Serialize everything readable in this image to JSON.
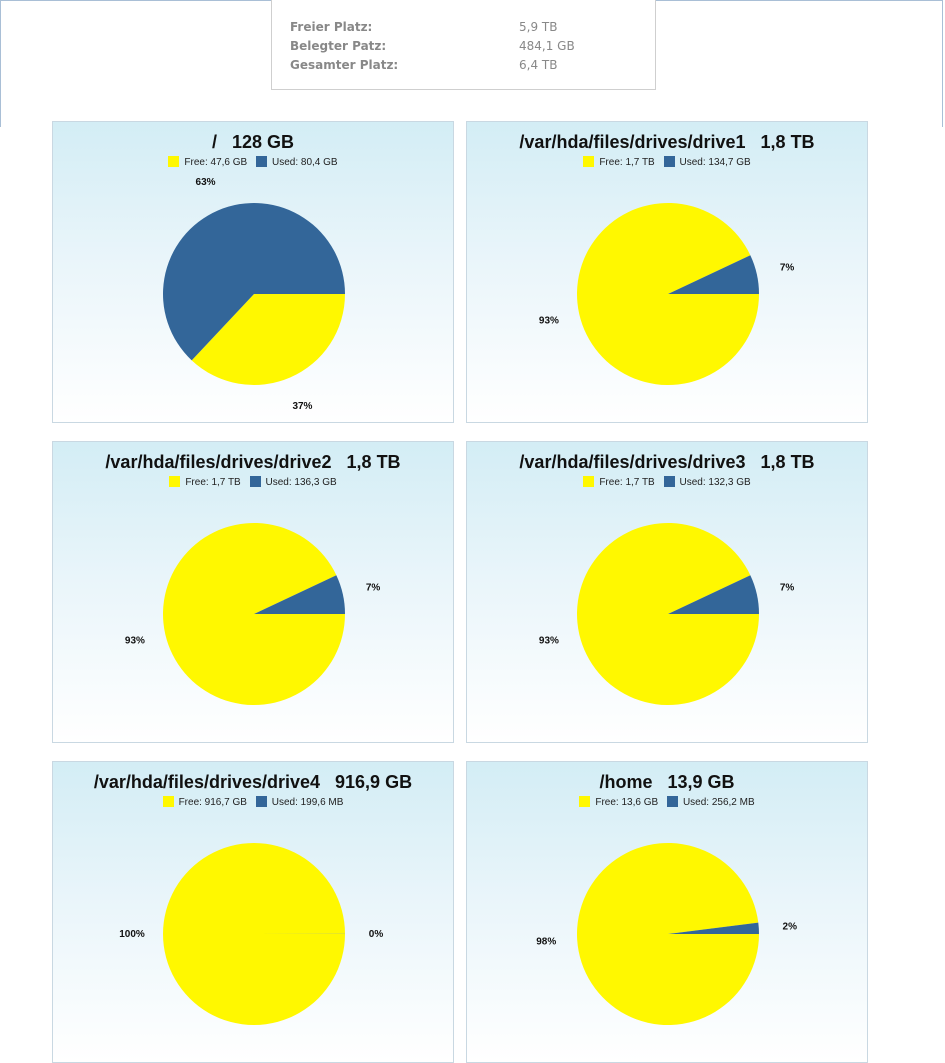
{
  "summary": {
    "free_label": "Freier Platz:",
    "free_value": "5,9 TB",
    "used_label": "Belegter Patz:",
    "used_value": "484,1 GB",
    "total_label": "Gesamter Platz:",
    "total_value": "6,4 TB"
  },
  "colors": {
    "free": "#fff800",
    "used": "#336699"
  },
  "chart_data": [
    {
      "type": "pie",
      "title": "/   128 GB",
      "mount": "/",
      "size": "128 GB",
      "legend": [
        "Free: 47,6 GB",
        "Used: 80,4 GB"
      ],
      "categories": [
        "Free",
        "Used"
      ],
      "values": [
        37,
        63
      ],
      "labels": [
        "37%",
        "63%"
      ]
    },
    {
      "type": "pie",
      "title": "/var/hda/files/drives/drive1   1,8 TB",
      "mount": "/var/hda/files/drives/drive1",
      "size": "1,8 TB",
      "legend": [
        "Free: 1,7 TB",
        "Used: 134,7 GB"
      ],
      "categories": [
        "Free",
        "Used"
      ],
      "values": [
        93,
        7
      ],
      "labels": [
        "93%",
        "7%"
      ]
    },
    {
      "type": "pie",
      "title": "/var/hda/files/drives/drive2   1,8 TB",
      "mount": "/var/hda/files/drives/drive2",
      "size": "1,8 TB",
      "legend": [
        "Free: 1,7 TB",
        "Used: 136,3 GB"
      ],
      "categories": [
        "Free",
        "Used"
      ],
      "values": [
        93,
        7
      ],
      "labels": [
        "93%",
        "7%"
      ]
    },
    {
      "type": "pie",
      "title": "/var/hda/files/drives/drive3   1,8 TB",
      "mount": "/var/hda/files/drives/drive3",
      "size": "1,8 TB",
      "legend": [
        "Free: 1,7 TB",
        "Used: 132,3 GB"
      ],
      "categories": [
        "Free",
        "Used"
      ],
      "values": [
        93,
        7
      ],
      "labels": [
        "93%",
        "7%"
      ]
    },
    {
      "type": "pie",
      "title": "/var/hda/files/drives/drive4   916,9 GB",
      "mount": "/var/hda/files/drives/drive4",
      "size": "916,9 GB",
      "legend": [
        "Free: 916,7 GB",
        "Used: 199,6 MB"
      ],
      "categories": [
        "Free",
        "Used"
      ],
      "values": [
        99.98,
        0.02
      ],
      "labels": [
        "100%",
        "0%"
      ]
    },
    {
      "type": "pie",
      "title": "/home   13,9 GB",
      "mount": "/home",
      "size": "13,9 GB",
      "legend": [
        "Free: 13,6 GB",
        "Used: 256,2 MB"
      ],
      "categories": [
        "Free",
        "Used"
      ],
      "values": [
        98,
        2
      ],
      "labels": [
        "98%",
        "2%"
      ]
    }
  ]
}
